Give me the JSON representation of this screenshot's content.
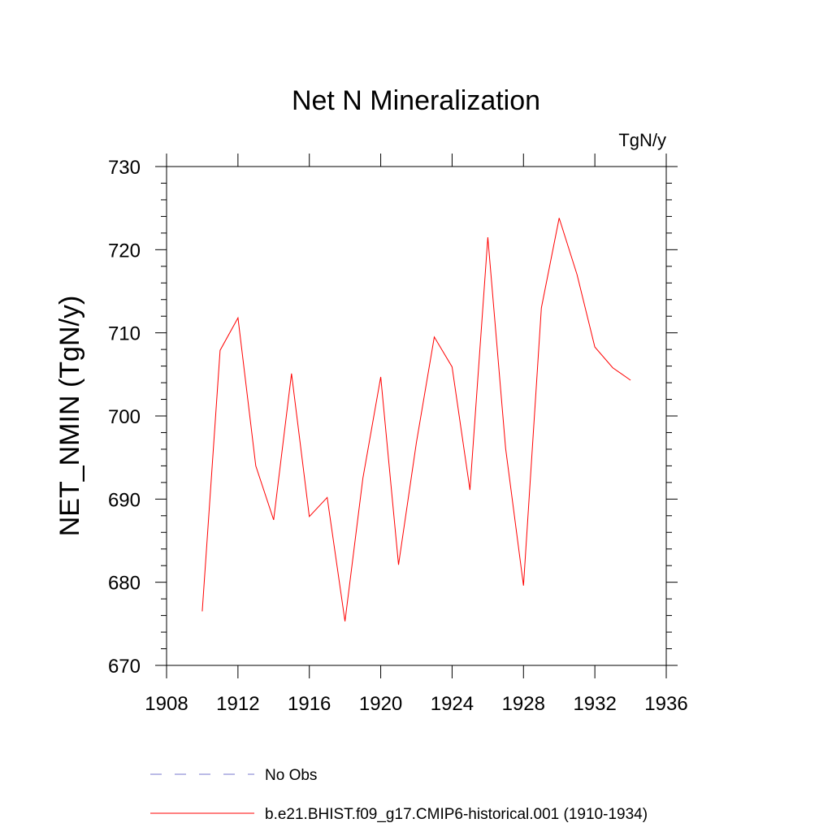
{
  "chart_data": {
    "type": "line",
    "title": "Net N Mineralization",
    "units": "TgN/y",
    "xlabel": "",
    "ylabel": "NET_NMIN  (TgN/y)",
    "xlim": [
      1908,
      1936
    ],
    "ylim": [
      670,
      730
    ],
    "x_ticks": [
      1908,
      1912,
      1916,
      1920,
      1924,
      1928,
      1932,
      1936
    ],
    "y_ticks": [
      670,
      680,
      690,
      700,
      710,
      720,
      730
    ],
    "grid": false,
    "legend_position": "bottom",
    "series": [
      {
        "name": "b.e21.BHIST.f09_g17.CMIP6-historical.001 (1910-1934)",
        "color": "#ff0000",
        "style": "solid",
        "x": [
          1910,
          1911,
          1912,
          1913,
          1914,
          1915,
          1916,
          1917,
          1918,
          1919,
          1920,
          1921,
          1922,
          1923,
          1924,
          1925,
          1926,
          1927,
          1928,
          1929,
          1930,
          1931,
          1932,
          1933,
          1934
        ],
        "y": [
          676.5,
          707.9,
          711.8,
          694.0,
          687.5,
          705.1,
          687.9,
          690.2,
          675.3,
          692.5,
          704.7,
          682.1,
          696.8,
          709.5,
          705.9,
          691.1,
          721.5,
          696.1,
          679.6,
          713.0,
          723.8,
          717.0,
          708.3,
          705.8,
          704.3
        ]
      }
    ],
    "legend": [
      {
        "label": "No Obs",
        "color": "#7777cc",
        "style": "dashed"
      },
      {
        "label": "b.e21.BHIST.f09_g17.CMIP6-historical.001 (1910-1934)",
        "color": "#ff0000",
        "style": "solid"
      }
    ]
  }
}
